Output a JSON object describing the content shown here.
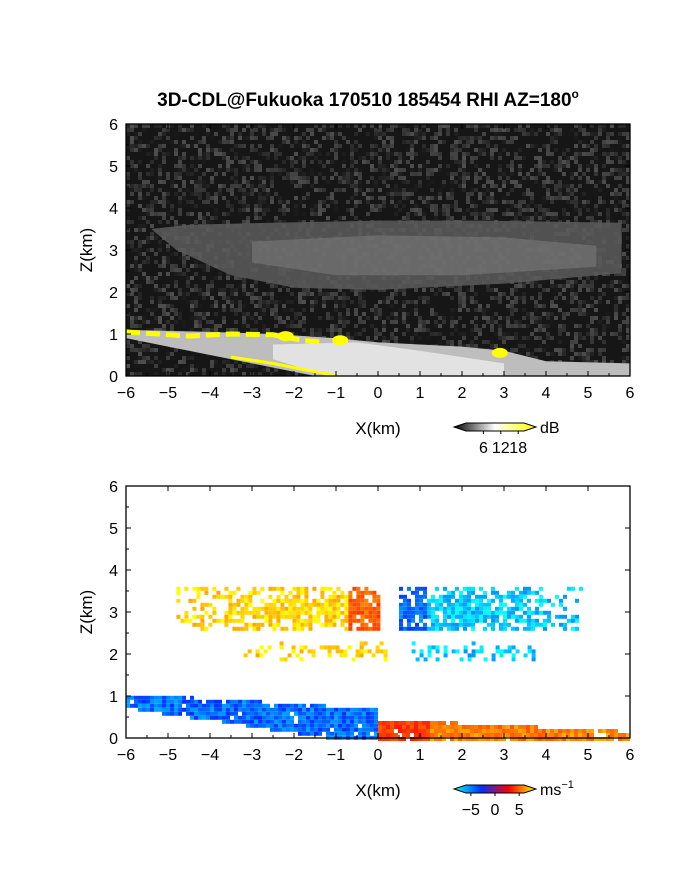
{
  "title_main": "3D-CDL@Fukuoka 170510 185454 RHI AZ=180",
  "title_deg": "o",
  "chart_data": [
    {
      "type": "heatmap",
      "name": "backscatter-intensity",
      "xlabel": "X(km)",
      "ylabel": "Z(km)",
      "xlim": [
        -6,
        6
      ],
      "ylim": [
        0,
        6
      ],
      "x_ticks": [
        -6,
        -5,
        -4,
        -3,
        -2,
        -1,
        0,
        1,
        2,
        3,
        4,
        5,
        6
      ],
      "y_ticks": [
        0,
        1,
        2,
        3,
        4,
        5,
        6
      ],
      "colorbar": {
        "unit": "dB",
        "ticks": [
          6,
          12,
          18
        ],
        "range": [
          0,
          20
        ],
        "colors": [
          "#000000",
          "#ffffff",
          "#ffff00"
        ]
      },
      "layers": [
        {
          "name": "upper-cloud-band",
          "x": [
            -5.5,
            5.8
          ],
          "z": [
            2.2,
            3.6
          ],
          "value": "10-14 dB"
        },
        {
          "name": "boundary-layer",
          "x": [
            -6,
            6
          ],
          "z": [
            0,
            1.1
          ],
          "value": "12-18 dB"
        }
      ]
    },
    {
      "type": "heatmap",
      "name": "doppler-velocity",
      "xlabel": "X(km)",
      "ylabel": "Z(km)",
      "xlim": [
        -6,
        6
      ],
      "ylim": [
        0,
        6
      ],
      "x_ticks": [
        -6,
        -5,
        -4,
        -3,
        -2,
        -1,
        0,
        1,
        2,
        3,
        4,
        5,
        6
      ],
      "y_ticks": [
        0,
        1,
        2,
        3,
        4,
        5,
        6
      ],
      "colorbar": {
        "unit": "ms",
        "unit_exp": "−1",
        "ticks": [
          -5,
          0,
          5
        ],
        "tick_labels": [
          "−5",
          "0",
          "5"
        ],
        "range": [
          -6,
          6
        ],
        "colors": [
          "#00ffff",
          "#0030ff",
          "#ff0000",
          "#ffff00"
        ]
      },
      "layers": [
        {
          "name": "upper-layer-left",
          "x": [
            -4.8,
            0
          ],
          "z": [
            2.6,
            3.6
          ],
          "velocity": 5
        },
        {
          "name": "upper-layer-right",
          "x": [
            0.5,
            4.8
          ],
          "z": [
            2.6,
            3.6
          ],
          "velocity": -5
        },
        {
          "name": "thin-layer-left",
          "x": [
            -3.2,
            0.2
          ],
          "z": [
            1.9,
            2.3
          ],
          "velocity": 5
        },
        {
          "name": "thin-layer-right",
          "x": [
            0.8,
            3.7
          ],
          "z": [
            1.9,
            2.3
          ],
          "velocity": -5
        },
        {
          "name": "boundary-layer-left",
          "x": [
            -6,
            0
          ],
          "z": [
            0,
            1.1
          ],
          "velocity": -3
        },
        {
          "name": "boundary-layer-right",
          "x": [
            0,
            6
          ],
          "z": [
            0,
            0.5
          ],
          "velocity": 3
        }
      ]
    }
  ]
}
